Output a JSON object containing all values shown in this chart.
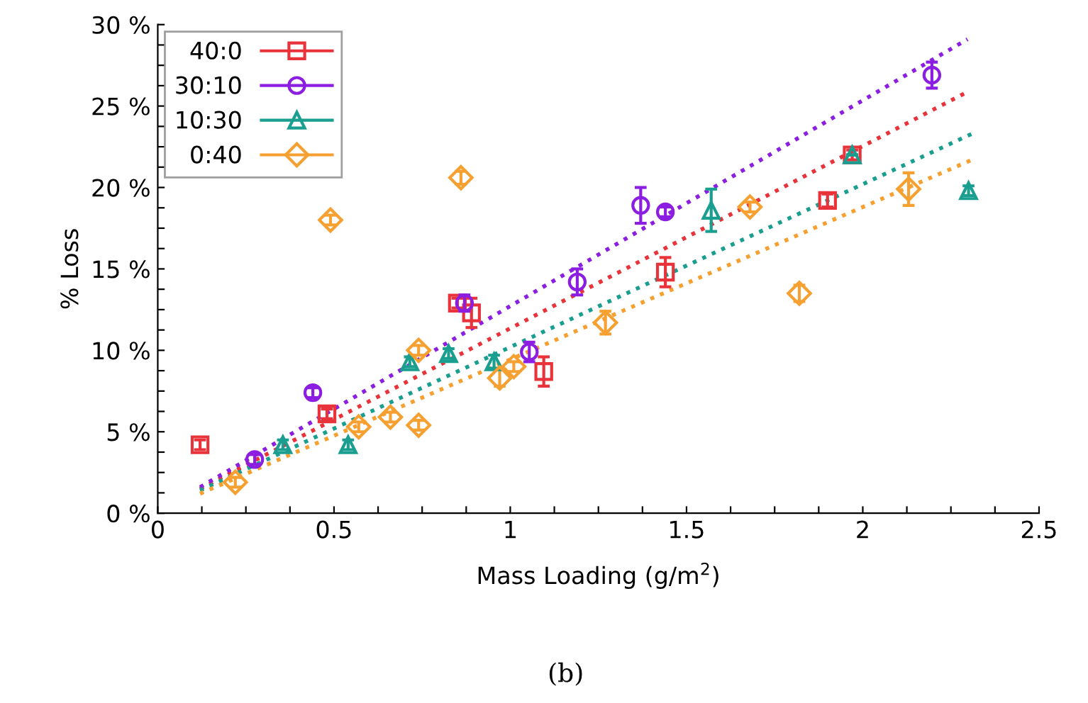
{
  "chart_data": {
    "type": "scatter",
    "xlabel": "Mass Loading (g/m$^{2}$)",
    "ylabel": "% Loss",
    "annotations": [
      "(b)"
    ],
    "xlim": [
      0,
      2.5
    ],
    "ylim": [
      0,
      30
    ],
    "xticks": [
      0,
      {
        "value": 0.125,
        "label": null
      },
      {
        "value": 0.25,
        "label": null
      },
      {
        "value": 0.375,
        "label": null
      },
      0.5,
      {
        "value": 0.625,
        "label": null
      },
      {
        "value": 0.75,
        "label": null
      },
      {
        "value": 0.875,
        "label": null
      },
      1,
      {
        "value": 1.125,
        "label": null
      },
      {
        "value": 1.25,
        "label": null
      },
      {
        "value": 1.375,
        "label": null
      },
      1.5,
      {
        "value": 1.625,
        "label": null
      },
      {
        "value": 1.75,
        "label": null
      },
      {
        "value": 1.875,
        "label": null
      },
      2,
      {
        "value": 2.125,
        "label": null
      },
      {
        "value": 2.25,
        "label": null
      },
      {
        "value": 2.375,
        "label": null
      },
      2.5
    ],
    "yticks": [
      {
        "value": 0,
        "label": "0 %"
      },
      {
        "value": 1.25,
        "label": null
      },
      {
        "value": 2.5,
        "label": null
      },
      {
        "value": 3.75,
        "label": null
      },
      {
        "value": 5,
        "label": "5 %"
      },
      {
        "value": 6.25,
        "label": null
      },
      {
        "value": 7.5,
        "label": null
      },
      {
        "value": 8.75,
        "label": null
      },
      {
        "value": 10,
        "label": "10 %"
      },
      {
        "value": 11.25,
        "label": null
      },
      {
        "value": 12.5,
        "label": null
      },
      {
        "value": 13.75,
        "label": null
      },
      {
        "value": 15,
        "label": "15 %"
      },
      {
        "value": 16.25,
        "label": null
      },
      {
        "value": 17.5,
        "label": null
      },
      {
        "value": 18.75,
        "label": null
      },
      {
        "value": 20,
        "label": "20 %"
      },
      {
        "value": 21.25,
        "label": null
      },
      {
        "value": 22.5,
        "label": null
      },
      {
        "value": 23.75,
        "label": null
      },
      {
        "value": 25,
        "label": "25 %"
      },
      {
        "value": 26.25,
        "label": null
      },
      {
        "value": 27.5,
        "label": null
      },
      {
        "value": 28.75,
        "label": null
      },
      {
        "value": 30,
        "label": "30 %"
      }
    ],
    "grid": false,
    "legend": "top left",
    "series": [
      {
        "name": "40:0",
        "color": "#e8333a",
        "marker": "square",
        "x": [
          0.12,
          0.48,
          0.85,
          0.89,
          1.095,
          1.44,
          1.9,
          1.97
        ],
        "values": [
          4.2,
          6.1,
          12.9,
          12.3,
          8.7,
          14.8,
          19.2,
          22.0
        ],
        "errors": [
          0.3,
          0.3,
          0.3,
          0.9,
          0.9,
          0.9,
          0.4,
          0.3
        ]
      },
      {
        "name": "30:10",
        "color": "#8b1ee0",
        "marker": "circle",
        "x": [
          0.275,
          0.44,
          0.87,
          1.054,
          1.19,
          1.37,
          1.44,
          2.196
        ],
        "values": [
          3.3,
          7.4,
          12.9,
          9.9,
          14.2,
          18.9,
          18.5,
          26.9
        ],
        "errors": [
          0.3,
          0.3,
          0.5,
          0.6,
          0.8,
          1.1,
          0.3,
          0.8
        ]
      },
      {
        "name": "10:30",
        "color": "#1a9e8f",
        "marker": "triangle",
        "x": [
          0.355,
          0.54,
          0.715,
          0.825,
          0.954,
          1.57,
          1.97,
          2.3
        ],
        "values": [
          4.2,
          4.2,
          9.3,
          9.8,
          9.3,
          18.6,
          22.0,
          19.8
        ],
        "errors": [
          0.3,
          0.3,
          0.3,
          0.3,
          0.4,
          1.3,
          null,
          0.3
        ]
      },
      {
        "name": "0:40",
        "color": "#f5a030",
        "marker": "diamond",
        "x": [
          0.22,
          0.49,
          0.57,
          0.66,
          0.74,
          0.74,
          0.86,
          0.97,
          1.01,
          1.27,
          1.68,
          1.82,
          2.13
        ],
        "values": [
          1.9,
          18.0,
          5.3,
          5.9,
          5.4,
          10.0,
          20.6,
          8.3,
          9.0,
          11.7,
          18.8,
          13.5,
          19.9
        ],
        "errors": [
          0.3,
          0.3,
          0.3,
          0.3,
          0.3,
          0.3,
          0.4,
          0.5,
          0.3,
          0.7,
          0.3,
          0.5,
          1.0
        ]
      },
      {
        "type": "line",
        "line_style": "dotted",
        "color": "#e8333a",
        "x": [
          0.12,
          2.3
        ],
        "values": [
          1.5,
          25.9
        ]
      },
      {
        "type": "line",
        "line_style": "dotted",
        "color": "#8b1ee0",
        "x": [
          0.12,
          2.297
        ],
        "values": [
          1.6,
          29.1
        ]
      },
      {
        "type": "line",
        "line_style": "dotted",
        "color": "#1a9e8f",
        "x": [
          0.12,
          2.31
        ],
        "values": [
          1.4,
          23.3
        ]
      },
      {
        "type": "line",
        "line_style": "dotted",
        "color": "#f5a030",
        "x": [
          0.12,
          2.31
        ],
        "values": [
          1.2,
          21.7
        ]
      }
    ]
  }
}
